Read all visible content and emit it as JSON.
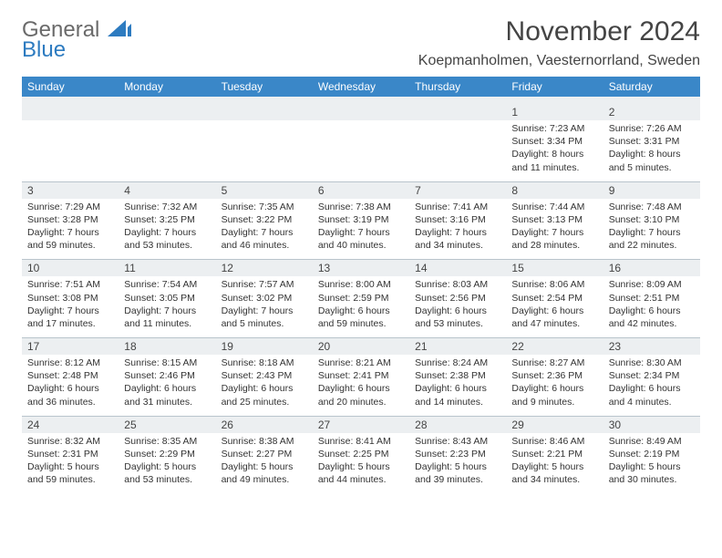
{
  "logo": {
    "line1": "General",
    "line2": "Blue"
  },
  "title": "November 2024",
  "location": "Koepmanholmen, Vaesternorrland, Sweden",
  "weekdays": [
    "Sunday",
    "Monday",
    "Tuesday",
    "Wednesday",
    "Thursday",
    "Friday",
    "Saturday"
  ],
  "colors": {
    "header_bg": "#3a87c8",
    "header_text": "#ffffff",
    "dayhead_bg": "#eceff1",
    "border": "#b9c4cc",
    "title_text": "#444444",
    "logo_gray": "#6a6a6a",
    "logo_blue": "#2d7bc0"
  },
  "weeks": [
    [
      {
        "n": "",
        "lines": []
      },
      {
        "n": "",
        "lines": []
      },
      {
        "n": "",
        "lines": []
      },
      {
        "n": "",
        "lines": []
      },
      {
        "n": "",
        "lines": []
      },
      {
        "n": "1",
        "lines": [
          "Sunrise: 7:23 AM",
          "Sunset: 3:34 PM",
          "Daylight: 8 hours",
          "and 11 minutes."
        ]
      },
      {
        "n": "2",
        "lines": [
          "Sunrise: 7:26 AM",
          "Sunset: 3:31 PM",
          "Daylight: 8 hours",
          "and 5 minutes."
        ]
      }
    ],
    [
      {
        "n": "3",
        "lines": [
          "Sunrise: 7:29 AM",
          "Sunset: 3:28 PM",
          "Daylight: 7 hours",
          "and 59 minutes."
        ]
      },
      {
        "n": "4",
        "lines": [
          "Sunrise: 7:32 AM",
          "Sunset: 3:25 PM",
          "Daylight: 7 hours",
          "and 53 minutes."
        ]
      },
      {
        "n": "5",
        "lines": [
          "Sunrise: 7:35 AM",
          "Sunset: 3:22 PM",
          "Daylight: 7 hours",
          "and 46 minutes."
        ]
      },
      {
        "n": "6",
        "lines": [
          "Sunrise: 7:38 AM",
          "Sunset: 3:19 PM",
          "Daylight: 7 hours",
          "and 40 minutes."
        ]
      },
      {
        "n": "7",
        "lines": [
          "Sunrise: 7:41 AM",
          "Sunset: 3:16 PM",
          "Daylight: 7 hours",
          "and 34 minutes."
        ]
      },
      {
        "n": "8",
        "lines": [
          "Sunrise: 7:44 AM",
          "Sunset: 3:13 PM",
          "Daylight: 7 hours",
          "and 28 minutes."
        ]
      },
      {
        "n": "9",
        "lines": [
          "Sunrise: 7:48 AM",
          "Sunset: 3:10 PM",
          "Daylight: 7 hours",
          "and 22 minutes."
        ]
      }
    ],
    [
      {
        "n": "10",
        "lines": [
          "Sunrise: 7:51 AM",
          "Sunset: 3:08 PM",
          "Daylight: 7 hours",
          "and 17 minutes."
        ]
      },
      {
        "n": "11",
        "lines": [
          "Sunrise: 7:54 AM",
          "Sunset: 3:05 PM",
          "Daylight: 7 hours",
          "and 11 minutes."
        ]
      },
      {
        "n": "12",
        "lines": [
          "Sunrise: 7:57 AM",
          "Sunset: 3:02 PM",
          "Daylight: 7 hours",
          "and 5 minutes."
        ]
      },
      {
        "n": "13",
        "lines": [
          "Sunrise: 8:00 AM",
          "Sunset: 2:59 PM",
          "Daylight: 6 hours",
          "and 59 minutes."
        ]
      },
      {
        "n": "14",
        "lines": [
          "Sunrise: 8:03 AM",
          "Sunset: 2:56 PM",
          "Daylight: 6 hours",
          "and 53 minutes."
        ]
      },
      {
        "n": "15",
        "lines": [
          "Sunrise: 8:06 AM",
          "Sunset: 2:54 PM",
          "Daylight: 6 hours",
          "and 47 minutes."
        ]
      },
      {
        "n": "16",
        "lines": [
          "Sunrise: 8:09 AM",
          "Sunset: 2:51 PM",
          "Daylight: 6 hours",
          "and 42 minutes."
        ]
      }
    ],
    [
      {
        "n": "17",
        "lines": [
          "Sunrise: 8:12 AM",
          "Sunset: 2:48 PM",
          "Daylight: 6 hours",
          "and 36 minutes."
        ]
      },
      {
        "n": "18",
        "lines": [
          "Sunrise: 8:15 AM",
          "Sunset: 2:46 PM",
          "Daylight: 6 hours",
          "and 31 minutes."
        ]
      },
      {
        "n": "19",
        "lines": [
          "Sunrise: 8:18 AM",
          "Sunset: 2:43 PM",
          "Daylight: 6 hours",
          "and 25 minutes."
        ]
      },
      {
        "n": "20",
        "lines": [
          "Sunrise: 8:21 AM",
          "Sunset: 2:41 PM",
          "Daylight: 6 hours",
          "and 20 minutes."
        ]
      },
      {
        "n": "21",
        "lines": [
          "Sunrise: 8:24 AM",
          "Sunset: 2:38 PM",
          "Daylight: 6 hours",
          "and 14 minutes."
        ]
      },
      {
        "n": "22",
        "lines": [
          "Sunrise: 8:27 AM",
          "Sunset: 2:36 PM",
          "Daylight: 6 hours",
          "and 9 minutes."
        ]
      },
      {
        "n": "23",
        "lines": [
          "Sunrise: 8:30 AM",
          "Sunset: 2:34 PM",
          "Daylight: 6 hours",
          "and 4 minutes."
        ]
      }
    ],
    [
      {
        "n": "24",
        "lines": [
          "Sunrise: 8:32 AM",
          "Sunset: 2:31 PM",
          "Daylight: 5 hours",
          "and 59 minutes."
        ]
      },
      {
        "n": "25",
        "lines": [
          "Sunrise: 8:35 AM",
          "Sunset: 2:29 PM",
          "Daylight: 5 hours",
          "and 53 minutes."
        ]
      },
      {
        "n": "26",
        "lines": [
          "Sunrise: 8:38 AM",
          "Sunset: 2:27 PM",
          "Daylight: 5 hours",
          "and 49 minutes."
        ]
      },
      {
        "n": "27",
        "lines": [
          "Sunrise: 8:41 AM",
          "Sunset: 2:25 PM",
          "Daylight: 5 hours",
          "and 44 minutes."
        ]
      },
      {
        "n": "28",
        "lines": [
          "Sunrise: 8:43 AM",
          "Sunset: 2:23 PM",
          "Daylight: 5 hours",
          "and 39 minutes."
        ]
      },
      {
        "n": "29",
        "lines": [
          "Sunrise: 8:46 AM",
          "Sunset: 2:21 PM",
          "Daylight: 5 hours",
          "and 34 minutes."
        ]
      },
      {
        "n": "30",
        "lines": [
          "Sunrise: 8:49 AM",
          "Sunset: 2:19 PM",
          "Daylight: 5 hours",
          "and 30 minutes."
        ]
      }
    ]
  ]
}
